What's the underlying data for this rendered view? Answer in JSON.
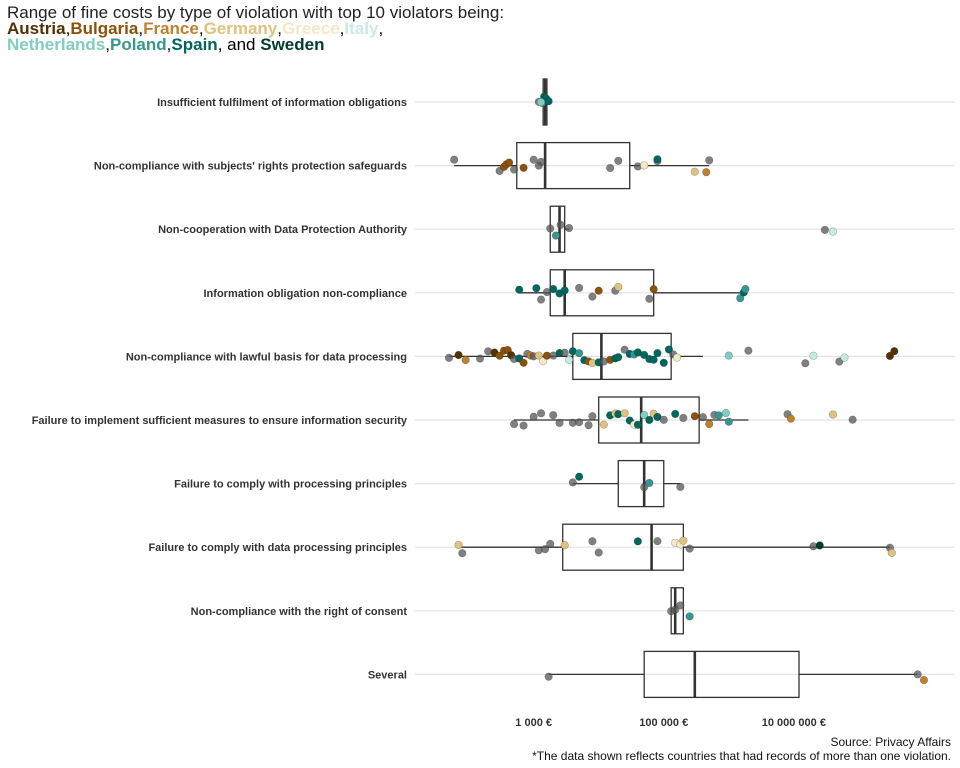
{
  "title": {
    "prefix": "Range of fine costs by type of violation with top 10 violators being:",
    "countries": [
      {
        "name": "Austria",
        "color": "#543005"
      },
      {
        "name": "Bulgaria",
        "color": "#8c510a"
      },
      {
        "name": "France",
        "color": "#bf812d"
      },
      {
        "name": "Germany",
        "color": "#dfc27d"
      },
      {
        "name": "Greece",
        "color": "#f6e8c3"
      },
      {
        "name": "Italy",
        "color": "#c7eae5"
      },
      {
        "name": "Netherlands",
        "color": "#80cdc1"
      },
      {
        "name": "Poland",
        "color": "#35978f"
      },
      {
        "name": "Spain",
        "color": "#01665e"
      },
      {
        "name": "Sweden",
        "color": "#003c30"
      }
    ],
    "conjunction": "and"
  },
  "caption": {
    "source": "Source: Privacy Affairs",
    "note": "*The data shown reflects countries that had records of more than one violation."
  },
  "chart_data": {
    "type": "boxplot",
    "orientation": "horizontal",
    "x_scale": "log10",
    "xlim": [
      15,
      3000000000
    ],
    "x_ticks": [
      {
        "value": 1000,
        "label": "1 000 €"
      },
      {
        "value": 100000,
        "label": "100 000 €"
      },
      {
        "value": 10000000,
        "label": "10 000 000 €"
      }
    ],
    "other_color": "#555555",
    "boxes": [
      {
        "category": "Insufficient fulfilment of information obligations",
        "min": 1400,
        "q1": 1400,
        "median": 1500,
        "q3": 1600,
        "max": 1600
      },
      {
        "category": "Non-compliance with subjects' rights protection safeguards",
        "min": 60,
        "q1": 550,
        "median": 1500,
        "q3": 30000,
        "max": 500000
      },
      {
        "category": "Non-cooperation with Data Protection Authority",
        "min": 1800,
        "q1": 1800,
        "median": 2500,
        "q3": 3000,
        "max": 3500
      },
      {
        "category": "Information obligation non-compliance",
        "min": 600,
        "q1": 1800,
        "median": 3000,
        "q3": 70000,
        "max": 1800000
      },
      {
        "category": "Non-compliance with lawful basis for data processing",
        "min": 50,
        "q1": 4000,
        "median": 11000,
        "q3": 130000,
        "max": 400000
      },
      {
        "category": "Failure to implement sufficient measures to ensure information security",
        "min": 500,
        "q1": 10000,
        "median": 45000,
        "q3": 350000,
        "max": 2000000
      },
      {
        "category": "Failure to comply with processing principles",
        "min": 4000,
        "q1": 20000,
        "median": 50000,
        "q3": 100000,
        "max": 180000
      },
      {
        "category": "Failure to comply with data processing principles",
        "min": 70,
        "q1": 2800,
        "median": 65000,
        "q3": 200000,
        "max": 300000000
      },
      {
        "category": "Non-compliance with the right of consent",
        "min": 130000,
        "q1": 130000,
        "median": 150000,
        "q3": 200000,
        "max": 200000
      },
      {
        "category": "Several",
        "min": 1700,
        "q1": 50000,
        "median": 300000,
        "q3": 12000000,
        "max": 800000000
      }
    ],
    "points": [
      {
        "cat": 0,
        "x": 1200,
        "c": "Other"
      },
      {
        "cat": 0,
        "x": 1350,
        "c": "Poland"
      },
      {
        "cat": 0,
        "x": 1450,
        "c": "Spain"
      },
      {
        "cat": 0,
        "x": 1550,
        "c": "Spain"
      },
      {
        "cat": 0,
        "x": 1700,
        "c": "Spain"
      },
      {
        "cat": 0,
        "x": 1300,
        "c": "Netherlands"
      },
      {
        "cat": 1,
        "x": 60,
        "c": "Other"
      },
      {
        "cat": 1,
        "x": 300,
        "c": "Other"
      },
      {
        "cat": 1,
        "x": 350,
        "c": "Bulgaria"
      },
      {
        "cat": 1,
        "x": 380,
        "c": "Bulgaria"
      },
      {
        "cat": 1,
        "x": 420,
        "c": "Bulgaria"
      },
      {
        "cat": 1,
        "x": 500,
        "c": "Other"
      },
      {
        "cat": 1,
        "x": 700,
        "c": "Bulgaria"
      },
      {
        "cat": 1,
        "x": 1000,
        "c": "Other"
      },
      {
        "cat": 1,
        "x": 1200,
        "c": "Other"
      },
      {
        "cat": 1,
        "x": 1300,
        "c": "Other"
      },
      {
        "cat": 1,
        "x": 15000,
        "c": "Other"
      },
      {
        "cat": 1,
        "x": 20000,
        "c": "Other"
      },
      {
        "cat": 1,
        "x": 40000,
        "c": "Other"
      },
      {
        "cat": 1,
        "x": 50000,
        "c": "Greece"
      },
      {
        "cat": 1,
        "x": 80000,
        "c": "Other"
      },
      {
        "cat": 1,
        "x": 80000,
        "c": "Spain"
      },
      {
        "cat": 1,
        "x": 300000,
        "c": "Germany"
      },
      {
        "cat": 1,
        "x": 450000,
        "c": "France"
      },
      {
        "cat": 1,
        "x": 500000,
        "c": "Other"
      },
      {
        "cat": 2,
        "x": 1800,
        "c": "Other"
      },
      {
        "cat": 2,
        "x": 2200,
        "c": "Poland"
      },
      {
        "cat": 2,
        "x": 2600,
        "c": "Other"
      },
      {
        "cat": 2,
        "x": 3500,
        "c": "Other"
      },
      {
        "cat": 2,
        "x": 30000000,
        "c": "Other"
      },
      {
        "cat": 2,
        "x": 40000000,
        "c": "Italy"
      },
      {
        "cat": 3,
        "x": 600,
        "c": "Spain"
      },
      {
        "cat": 3,
        "x": 1100,
        "c": "Spain"
      },
      {
        "cat": 3,
        "x": 1300,
        "c": "Other"
      },
      {
        "cat": 3,
        "x": 1600,
        "c": "Other"
      },
      {
        "cat": 3,
        "x": 2000,
        "c": "Spain"
      },
      {
        "cat": 3,
        "x": 2500,
        "c": "Spain"
      },
      {
        "cat": 3,
        "x": 3000,
        "c": "Spain"
      },
      {
        "cat": 3,
        "x": 5000,
        "c": "Other"
      },
      {
        "cat": 3,
        "x": 8000,
        "c": "Other"
      },
      {
        "cat": 3,
        "x": 10000,
        "c": "Bulgaria"
      },
      {
        "cat": 3,
        "x": 18000,
        "c": "Other"
      },
      {
        "cat": 3,
        "x": 20000,
        "c": "Germany"
      },
      {
        "cat": 3,
        "x": 60000,
        "c": "Other"
      },
      {
        "cat": 3,
        "x": 70000,
        "c": "Bulgaria"
      },
      {
        "cat": 3,
        "x": 1500000,
        "c": "Poland"
      },
      {
        "cat": 3,
        "x": 1700000,
        "c": "Spain"
      },
      {
        "cat": 3,
        "x": 1800000,
        "c": "Poland"
      },
      {
        "cat": 4,
        "x": 50,
        "c": "Other"
      },
      {
        "cat": 4,
        "x": 70,
        "c": "Austria"
      },
      {
        "cat": 4,
        "x": 90,
        "c": "France"
      },
      {
        "cat": 4,
        "x": 150,
        "c": "Other"
      },
      {
        "cat": 4,
        "x": 200,
        "c": "Other"
      },
      {
        "cat": 4,
        "x": 250,
        "c": "Austria"
      },
      {
        "cat": 4,
        "x": 300,
        "c": "Bulgaria"
      },
      {
        "cat": 4,
        "x": 350,
        "c": "Bulgaria"
      },
      {
        "cat": 4,
        "x": 400,
        "c": "Bulgaria"
      },
      {
        "cat": 4,
        "x": 450,
        "c": "Austria"
      },
      {
        "cat": 4,
        "x": 500,
        "c": "Other"
      },
      {
        "cat": 4,
        "x": 600,
        "c": "Spain"
      },
      {
        "cat": 4,
        "x": 700,
        "c": "Bulgaria"
      },
      {
        "cat": 4,
        "x": 800,
        "c": "Other"
      },
      {
        "cat": 4,
        "x": 900,
        "c": "France"
      },
      {
        "cat": 4,
        "x": 1000,
        "c": "Other"
      },
      {
        "cat": 4,
        "x": 1200,
        "c": "Germany"
      },
      {
        "cat": 4,
        "x": 1400,
        "c": "Greece"
      },
      {
        "cat": 4,
        "x": 1600,
        "c": "Bulgaria"
      },
      {
        "cat": 4,
        "x": 2000,
        "c": "Other"
      },
      {
        "cat": 4,
        "x": 2500,
        "c": "Spain"
      },
      {
        "cat": 4,
        "x": 3000,
        "c": "Other"
      },
      {
        "cat": 4,
        "x": 3500,
        "c": "Italy"
      },
      {
        "cat": 4,
        "x": 4000,
        "c": "Spain"
      },
      {
        "cat": 4,
        "x": 5000,
        "c": "Poland"
      },
      {
        "cat": 4,
        "x": 6000,
        "c": "Spain"
      },
      {
        "cat": 4,
        "x": 7000,
        "c": "Bulgaria"
      },
      {
        "cat": 4,
        "x": 8000,
        "c": "Germany"
      },
      {
        "cat": 4,
        "x": 10000,
        "c": "Spain"
      },
      {
        "cat": 4,
        "x": 12000,
        "c": "Other"
      },
      {
        "cat": 4,
        "x": 15000,
        "c": "Bulgaria"
      },
      {
        "cat": 4,
        "x": 18000,
        "c": "Spain"
      },
      {
        "cat": 4,
        "x": 20000,
        "c": "Spain"
      },
      {
        "cat": 4,
        "x": 25000,
        "c": "Other"
      },
      {
        "cat": 4,
        "x": 30000,
        "c": "Spain"
      },
      {
        "cat": 4,
        "x": 35000,
        "c": "Poland"
      },
      {
        "cat": 4,
        "x": 40000,
        "c": "Spain"
      },
      {
        "cat": 4,
        "x": 50000,
        "c": "Spain"
      },
      {
        "cat": 4,
        "x": 60000,
        "c": "Spain"
      },
      {
        "cat": 4,
        "x": 70000,
        "c": "Spain"
      },
      {
        "cat": 4,
        "x": 80000,
        "c": "Spain"
      },
      {
        "cat": 4,
        "x": 100000,
        "c": "Spain"
      },
      {
        "cat": 4,
        "x": 120000,
        "c": "Spain"
      },
      {
        "cat": 4,
        "x": 140000,
        "c": "Other"
      },
      {
        "cat": 4,
        "x": 160000,
        "c": "Greece"
      },
      {
        "cat": 4,
        "x": 1000000,
        "c": "Netherlands"
      },
      {
        "cat": 4,
        "x": 2000000,
        "c": "Other"
      },
      {
        "cat": 4,
        "x": 15000000,
        "c": "Other"
      },
      {
        "cat": 4,
        "x": 20000000,
        "c": "Italy"
      },
      {
        "cat": 4,
        "x": 50000000,
        "c": "Other"
      },
      {
        "cat": 4,
        "x": 60000000,
        "c": "Italy"
      },
      {
        "cat": 4,
        "x": 300000000,
        "c": "Austria"
      },
      {
        "cat": 4,
        "x": 350000000,
        "c": "Austria"
      },
      {
        "cat": 5,
        "x": 500,
        "c": "Other"
      },
      {
        "cat": 5,
        "x": 700,
        "c": "Other"
      },
      {
        "cat": 5,
        "x": 1000,
        "c": "Other"
      },
      {
        "cat": 5,
        "x": 1300,
        "c": "Other"
      },
      {
        "cat": 5,
        "x": 2000,
        "c": "Other"
      },
      {
        "cat": 5,
        "x": 2500,
        "c": "Other"
      },
      {
        "cat": 5,
        "x": 4000,
        "c": "Other"
      },
      {
        "cat": 5,
        "x": 5000,
        "c": "Other"
      },
      {
        "cat": 5,
        "x": 7000,
        "c": "Other"
      },
      {
        "cat": 5,
        "x": 8000,
        "c": "Other"
      },
      {
        "cat": 5,
        "x": 12000,
        "c": "Germany"
      },
      {
        "cat": 5,
        "x": 15000,
        "c": "Spain"
      },
      {
        "cat": 5,
        "x": 18000,
        "c": "Germany"
      },
      {
        "cat": 5,
        "x": 20000,
        "c": "Spain"
      },
      {
        "cat": 5,
        "x": 25000,
        "c": "Germany"
      },
      {
        "cat": 5,
        "x": 30000,
        "c": "Spain"
      },
      {
        "cat": 5,
        "x": 35000,
        "c": "Greece"
      },
      {
        "cat": 5,
        "x": 40000,
        "c": "Spain"
      },
      {
        "cat": 5,
        "x": 50000,
        "c": "Netherlands"
      },
      {
        "cat": 5,
        "x": 60000,
        "c": "Spain"
      },
      {
        "cat": 5,
        "x": 70000,
        "c": "Germany"
      },
      {
        "cat": 5,
        "x": 80000,
        "c": "Spain"
      },
      {
        "cat": 5,
        "x": 100000,
        "c": "Other"
      },
      {
        "cat": 5,
        "x": 150000,
        "c": "Spain"
      },
      {
        "cat": 5,
        "x": 200000,
        "c": "Other"
      },
      {
        "cat": 5,
        "x": 300000,
        "c": "Bulgaria"
      },
      {
        "cat": 5,
        "x": 400000,
        "c": "Other"
      },
      {
        "cat": 5,
        "x": 500000,
        "c": "France"
      },
      {
        "cat": 5,
        "x": 600000,
        "c": "Other"
      },
      {
        "cat": 5,
        "x": 700000,
        "c": "Poland"
      },
      {
        "cat": 5,
        "x": 900000,
        "c": "Netherlands"
      },
      {
        "cat": 5,
        "x": 1000000,
        "c": "Poland"
      },
      {
        "cat": 5,
        "x": 8000000,
        "c": "Other"
      },
      {
        "cat": 5,
        "x": 9000000,
        "c": "France"
      },
      {
        "cat": 5,
        "x": 40000000,
        "c": "Germany"
      },
      {
        "cat": 5,
        "x": 80000000,
        "c": "Other"
      },
      {
        "cat": 6,
        "x": 4000,
        "c": "Other"
      },
      {
        "cat": 6,
        "x": 5000,
        "c": "Spain"
      },
      {
        "cat": 6,
        "x": 50000,
        "c": "Other"
      },
      {
        "cat": 6,
        "x": 60000,
        "c": "Poland"
      },
      {
        "cat": 6,
        "x": 180000,
        "c": "Other"
      },
      {
        "cat": 7,
        "x": 70,
        "c": "Germany"
      },
      {
        "cat": 7,
        "x": 80,
        "c": "Other"
      },
      {
        "cat": 7,
        "x": 1200,
        "c": "Other"
      },
      {
        "cat": 7,
        "x": 1500,
        "c": "Other"
      },
      {
        "cat": 7,
        "x": 1800,
        "c": "Other"
      },
      {
        "cat": 7,
        "x": 3000,
        "c": "Germany"
      },
      {
        "cat": 7,
        "x": 8000,
        "c": "Other"
      },
      {
        "cat": 7,
        "x": 10000,
        "c": "Other"
      },
      {
        "cat": 7,
        "x": 40000,
        "c": "Spain"
      },
      {
        "cat": 7,
        "x": 80000,
        "c": "Other"
      },
      {
        "cat": 7,
        "x": 150000,
        "c": "Greece"
      },
      {
        "cat": 7,
        "x": 180000,
        "c": "Greece"
      },
      {
        "cat": 7,
        "x": 200000,
        "c": "Germany"
      },
      {
        "cat": 7,
        "x": 250000,
        "c": "Other"
      },
      {
        "cat": 7,
        "x": 20000000,
        "c": "Other"
      },
      {
        "cat": 7,
        "x": 25000000,
        "c": "Sweden"
      },
      {
        "cat": 7,
        "x": 300000000,
        "c": "Other"
      },
      {
        "cat": 7,
        "x": 320000000,
        "c": "Germany"
      },
      {
        "cat": 8,
        "x": 130000,
        "c": "Other"
      },
      {
        "cat": 8,
        "x": 150000,
        "c": "Other"
      },
      {
        "cat": 8,
        "x": 180000,
        "c": "Other"
      },
      {
        "cat": 8,
        "x": 250000,
        "c": "Poland"
      },
      {
        "cat": 9,
        "x": 1700,
        "c": "Other"
      },
      {
        "cat": 9,
        "x": 800000000,
        "c": "Other"
      },
      {
        "cat": 9,
        "x": 1000000000,
        "c": "France"
      }
    ]
  }
}
